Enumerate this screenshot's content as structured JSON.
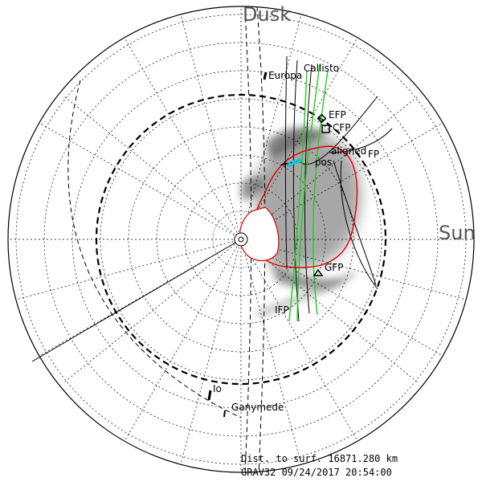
{
  "directions": {
    "top": "Dusk",
    "right": "Sun"
  },
  "moons": {
    "io": "Io",
    "europa": "Europa",
    "ganymede": "Ganymede",
    "callisto": "Callisto"
  },
  "footprints": {
    "efp": "EFP",
    "cfp": "CFP",
    "gfp": "GFP",
    "ifp": "IFP",
    "ufp": "FP"
  },
  "cluster_labels": {
    "aligned": "aligned",
    "pos": "pos"
  },
  "info": {
    "distance": "Dist. to surf.  16871.280 km",
    "timestamp": "GRAV32  09/24/2017 20:54:00"
  },
  "colors": {
    "oval": "#dd0000",
    "trace": "#22cc22",
    "emission": "#606060",
    "marker": "#00c8e0"
  }
}
